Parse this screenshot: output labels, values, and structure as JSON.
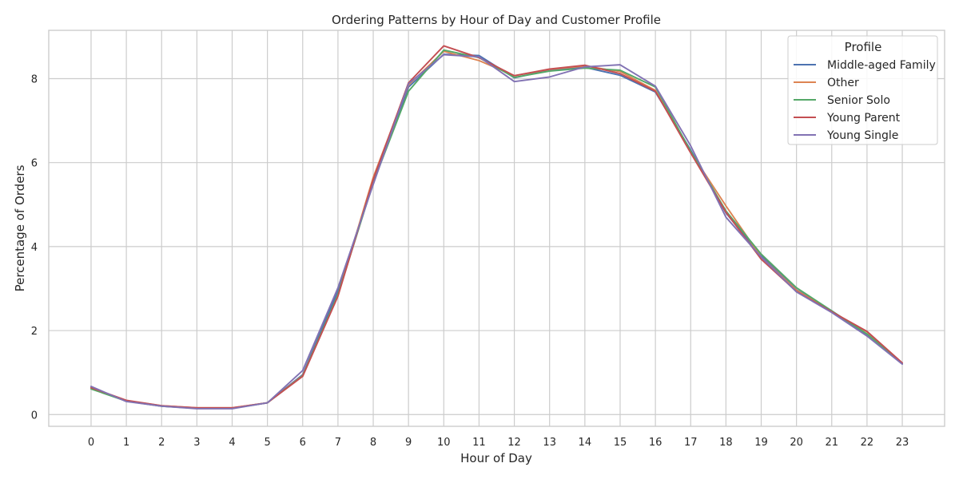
{
  "chart_data": {
    "type": "line",
    "title": "Ordering Patterns by Hour of Day and Customer Profile",
    "xlabel": "Hour of Day",
    "ylabel": "Percentage of Orders",
    "x": [
      0,
      1,
      2,
      3,
      4,
      5,
      6,
      7,
      8,
      9,
      10,
      11,
      12,
      13,
      14,
      15,
      16,
      17,
      18,
      19,
      20,
      21,
      22,
      23
    ],
    "x_tick_labels": [
      "0",
      "1",
      "2",
      "3",
      "4",
      "5",
      "6",
      "7",
      "8",
      "9",
      "10",
      "11",
      "12",
      "13",
      "14",
      "15",
      "16",
      "17",
      "18",
      "19",
      "20",
      "21",
      "22",
      "23"
    ],
    "y_tick_values": [
      0,
      2,
      4,
      6,
      8
    ],
    "y_tick_labels": [
      "0",
      "2",
      "4",
      "6",
      "8"
    ],
    "xlim": [
      -1.2,
      24.2
    ],
    "ylim": [
      -0.28,
      9.15
    ],
    "grid": true,
    "legend": {
      "title": "Profile",
      "placement": "top-right"
    },
    "series": [
      {
        "name": "Middle-aged Family",
        "color": "#4c72b0",
        "values": [
          0.64,
          0.32,
          0.2,
          0.15,
          0.15,
          0.28,
          0.95,
          2.95,
          5.55,
          7.8,
          8.58,
          8.55,
          8.02,
          8.2,
          8.27,
          8.08,
          7.68,
          6.3,
          4.8,
          3.78,
          2.97,
          2.47,
          1.9,
          1.21
        ]
      },
      {
        "name": "Other",
        "color": "#dd8452",
        "values": [
          0.64,
          0.33,
          0.21,
          0.16,
          0.16,
          0.28,
          0.93,
          2.85,
          5.65,
          7.85,
          8.65,
          8.43,
          8.07,
          8.22,
          8.3,
          8.17,
          7.72,
          6.25,
          4.97,
          3.75,
          2.96,
          2.45,
          1.97,
          1.22
        ]
      },
      {
        "name": "Senior Solo",
        "color": "#55a868",
        "values": [
          0.61,
          0.32,
          0.2,
          0.15,
          0.15,
          0.28,
          0.92,
          2.86,
          5.52,
          7.7,
          8.68,
          8.5,
          8.03,
          8.18,
          8.25,
          8.2,
          7.8,
          6.27,
          4.85,
          3.82,
          3.02,
          2.47,
          1.92,
          1.21
        ]
      },
      {
        "name": "Young Parent",
        "color": "#c44e52",
        "values": [
          0.64,
          0.34,
          0.21,
          0.16,
          0.16,
          0.28,
          0.91,
          2.82,
          5.6,
          7.9,
          8.78,
          8.5,
          8.07,
          8.23,
          8.32,
          8.12,
          7.7,
          6.23,
          4.82,
          3.7,
          2.93,
          2.45,
          1.98,
          1.23
        ]
      },
      {
        "name": "Young Single",
        "color": "#8172b3",
        "values": [
          0.67,
          0.31,
          0.2,
          0.14,
          0.14,
          0.28,
          1.05,
          3.02,
          5.48,
          7.88,
          8.57,
          8.52,
          7.93,
          8.04,
          8.28,
          8.33,
          7.82,
          6.4,
          4.7,
          3.75,
          2.92,
          2.43,
          1.87,
          1.2
        ]
      }
    ]
  }
}
